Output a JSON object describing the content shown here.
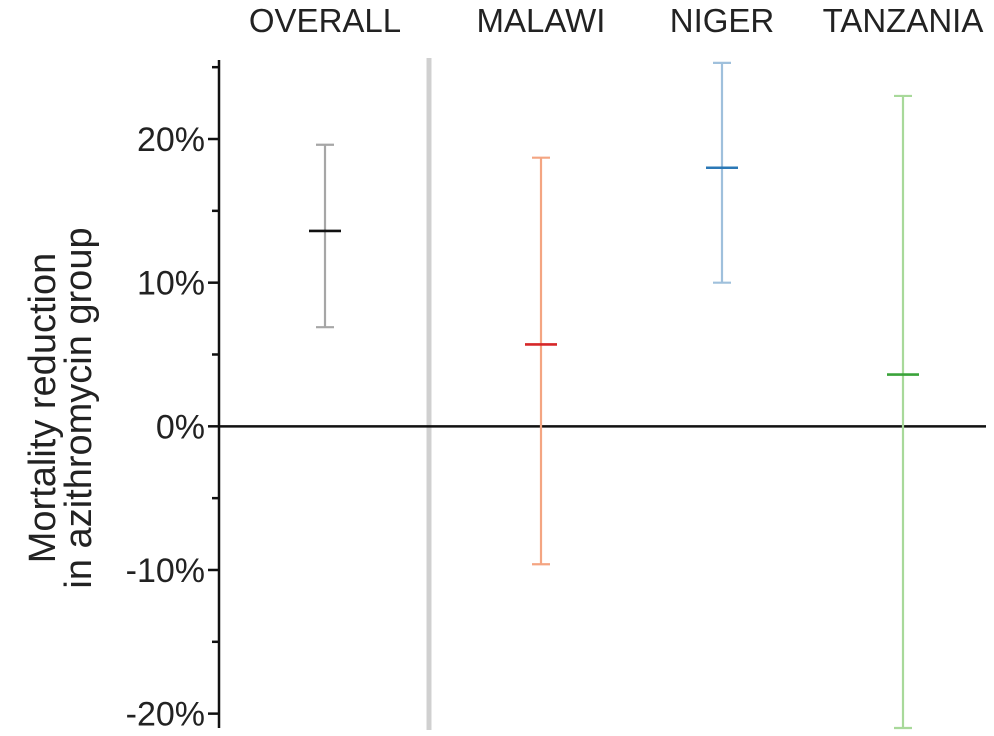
{
  "chart_data": {
    "type": "errorbar",
    "ylabel_lines": [
      "Mortality reduction",
      "in azithromycin group"
    ],
    "ylim": [
      -21,
      25.5
    ],
    "ytick_values": [
      -20,
      -10,
      0,
      10,
      20
    ],
    "yticks": [
      "-20%",
      "-10%",
      "0%",
      "10%",
      "20%"
    ],
    "y_minor_step": 5,
    "zero_line": true,
    "categories": [
      "OVERALL",
      "MALAWI",
      "NIGER",
      "TANZANIA"
    ],
    "series": [
      {
        "category": "OVERALL",
        "estimate": 13.6,
        "lower": 6.9,
        "upper": 19.6,
        "bar_color": "#a6a6a6",
        "point_color": "#111111"
      },
      {
        "category": "MALAWI",
        "estimate": 5.7,
        "lower": -9.6,
        "upper": 18.7,
        "bar_color": "#f4a582",
        "point_color": "#d62728"
      },
      {
        "category": "NIGER",
        "estimate": 18.0,
        "lower": 10.0,
        "upper": 25.3,
        "bar_color": "#9fc0dc",
        "point_color": "#2b78b6"
      },
      {
        "category": "TANZANIA",
        "estimate": 3.6,
        "lower": -21.0,
        "upper": 23.0,
        "bar_color": "#a8d99a",
        "point_color": "#3aa33a"
      }
    ],
    "separator_after": "OVERALL",
    "colors": {
      "axis": "#111111",
      "separator": "#d0d0d0"
    }
  }
}
